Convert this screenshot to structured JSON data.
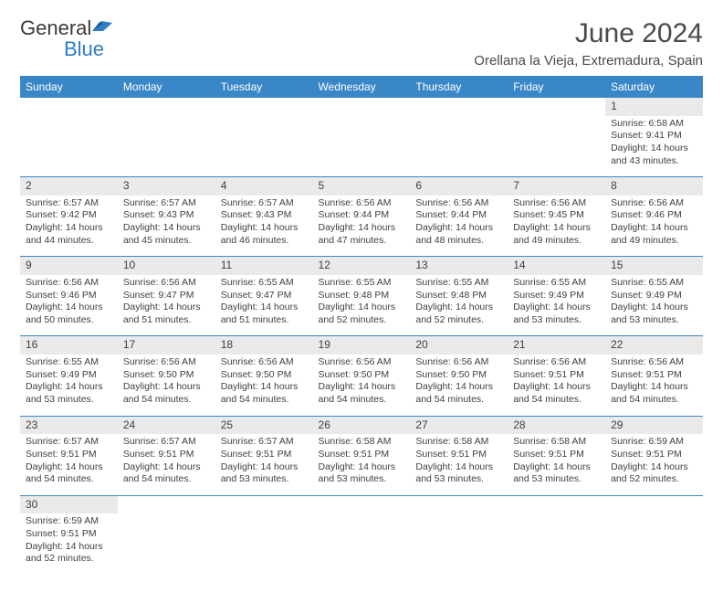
{
  "logo": {
    "general": "General",
    "blue": "Blue",
    "icon_color": "#2f7dc4"
  },
  "header": {
    "month": "June 2024",
    "location": "Orellana la Vieja, Extremadura, Spain"
  },
  "colors": {
    "header_bg": "#3a87c7",
    "header_fg": "#ffffff",
    "daybar_bg": "#eaeaea",
    "rule": "#3a87c7",
    "text": "#3f3f3f"
  },
  "dayNames": [
    "Sunday",
    "Monday",
    "Tuesday",
    "Wednesday",
    "Thursday",
    "Friday",
    "Saturday"
  ],
  "weeks": [
    [
      null,
      null,
      null,
      null,
      null,
      null,
      {
        "n": "1",
        "sr": "Sunrise: 6:58 AM",
        "ss": "Sunset: 9:41 PM",
        "d1": "Daylight: 14 hours",
        "d2": "and 43 minutes."
      }
    ],
    [
      {
        "n": "2",
        "sr": "Sunrise: 6:57 AM",
        "ss": "Sunset: 9:42 PM",
        "d1": "Daylight: 14 hours",
        "d2": "and 44 minutes."
      },
      {
        "n": "3",
        "sr": "Sunrise: 6:57 AM",
        "ss": "Sunset: 9:43 PM",
        "d1": "Daylight: 14 hours",
        "d2": "and 45 minutes."
      },
      {
        "n": "4",
        "sr": "Sunrise: 6:57 AM",
        "ss": "Sunset: 9:43 PM",
        "d1": "Daylight: 14 hours",
        "d2": "and 46 minutes."
      },
      {
        "n": "5",
        "sr": "Sunrise: 6:56 AM",
        "ss": "Sunset: 9:44 PM",
        "d1": "Daylight: 14 hours",
        "d2": "and 47 minutes."
      },
      {
        "n": "6",
        "sr": "Sunrise: 6:56 AM",
        "ss": "Sunset: 9:44 PM",
        "d1": "Daylight: 14 hours",
        "d2": "and 48 minutes."
      },
      {
        "n": "7",
        "sr": "Sunrise: 6:56 AM",
        "ss": "Sunset: 9:45 PM",
        "d1": "Daylight: 14 hours",
        "d2": "and 49 minutes."
      },
      {
        "n": "8",
        "sr": "Sunrise: 6:56 AM",
        "ss": "Sunset: 9:46 PM",
        "d1": "Daylight: 14 hours",
        "d2": "and 49 minutes."
      }
    ],
    [
      {
        "n": "9",
        "sr": "Sunrise: 6:56 AM",
        "ss": "Sunset: 9:46 PM",
        "d1": "Daylight: 14 hours",
        "d2": "and 50 minutes."
      },
      {
        "n": "10",
        "sr": "Sunrise: 6:56 AM",
        "ss": "Sunset: 9:47 PM",
        "d1": "Daylight: 14 hours",
        "d2": "and 51 minutes."
      },
      {
        "n": "11",
        "sr": "Sunrise: 6:55 AM",
        "ss": "Sunset: 9:47 PM",
        "d1": "Daylight: 14 hours",
        "d2": "and 51 minutes."
      },
      {
        "n": "12",
        "sr": "Sunrise: 6:55 AM",
        "ss": "Sunset: 9:48 PM",
        "d1": "Daylight: 14 hours",
        "d2": "and 52 minutes."
      },
      {
        "n": "13",
        "sr": "Sunrise: 6:55 AM",
        "ss": "Sunset: 9:48 PM",
        "d1": "Daylight: 14 hours",
        "d2": "and 52 minutes."
      },
      {
        "n": "14",
        "sr": "Sunrise: 6:55 AM",
        "ss": "Sunset: 9:49 PM",
        "d1": "Daylight: 14 hours",
        "d2": "and 53 minutes."
      },
      {
        "n": "15",
        "sr": "Sunrise: 6:55 AM",
        "ss": "Sunset: 9:49 PM",
        "d1": "Daylight: 14 hours",
        "d2": "and 53 minutes."
      }
    ],
    [
      {
        "n": "16",
        "sr": "Sunrise: 6:55 AM",
        "ss": "Sunset: 9:49 PM",
        "d1": "Daylight: 14 hours",
        "d2": "and 53 minutes."
      },
      {
        "n": "17",
        "sr": "Sunrise: 6:56 AM",
        "ss": "Sunset: 9:50 PM",
        "d1": "Daylight: 14 hours",
        "d2": "and 54 minutes."
      },
      {
        "n": "18",
        "sr": "Sunrise: 6:56 AM",
        "ss": "Sunset: 9:50 PM",
        "d1": "Daylight: 14 hours",
        "d2": "and 54 minutes."
      },
      {
        "n": "19",
        "sr": "Sunrise: 6:56 AM",
        "ss": "Sunset: 9:50 PM",
        "d1": "Daylight: 14 hours",
        "d2": "and 54 minutes."
      },
      {
        "n": "20",
        "sr": "Sunrise: 6:56 AM",
        "ss": "Sunset: 9:50 PM",
        "d1": "Daylight: 14 hours",
        "d2": "and 54 minutes."
      },
      {
        "n": "21",
        "sr": "Sunrise: 6:56 AM",
        "ss": "Sunset: 9:51 PM",
        "d1": "Daylight: 14 hours",
        "d2": "and 54 minutes."
      },
      {
        "n": "22",
        "sr": "Sunrise: 6:56 AM",
        "ss": "Sunset: 9:51 PM",
        "d1": "Daylight: 14 hours",
        "d2": "and 54 minutes."
      }
    ],
    [
      {
        "n": "23",
        "sr": "Sunrise: 6:57 AM",
        "ss": "Sunset: 9:51 PM",
        "d1": "Daylight: 14 hours",
        "d2": "and 54 minutes."
      },
      {
        "n": "24",
        "sr": "Sunrise: 6:57 AM",
        "ss": "Sunset: 9:51 PM",
        "d1": "Daylight: 14 hours",
        "d2": "and 54 minutes."
      },
      {
        "n": "25",
        "sr": "Sunrise: 6:57 AM",
        "ss": "Sunset: 9:51 PM",
        "d1": "Daylight: 14 hours",
        "d2": "and 53 minutes."
      },
      {
        "n": "26",
        "sr": "Sunrise: 6:58 AM",
        "ss": "Sunset: 9:51 PM",
        "d1": "Daylight: 14 hours",
        "d2": "and 53 minutes."
      },
      {
        "n": "27",
        "sr": "Sunrise: 6:58 AM",
        "ss": "Sunset: 9:51 PM",
        "d1": "Daylight: 14 hours",
        "d2": "and 53 minutes."
      },
      {
        "n": "28",
        "sr": "Sunrise: 6:58 AM",
        "ss": "Sunset: 9:51 PM",
        "d1": "Daylight: 14 hours",
        "d2": "and 53 minutes."
      },
      {
        "n": "29",
        "sr": "Sunrise: 6:59 AM",
        "ss": "Sunset: 9:51 PM",
        "d1": "Daylight: 14 hours",
        "d2": "and 52 minutes."
      }
    ],
    [
      {
        "n": "30",
        "sr": "Sunrise: 6:59 AM",
        "ss": "Sunset: 9:51 PM",
        "d1": "Daylight: 14 hours",
        "d2": "and 52 minutes."
      },
      null,
      null,
      null,
      null,
      null,
      null
    ]
  ]
}
